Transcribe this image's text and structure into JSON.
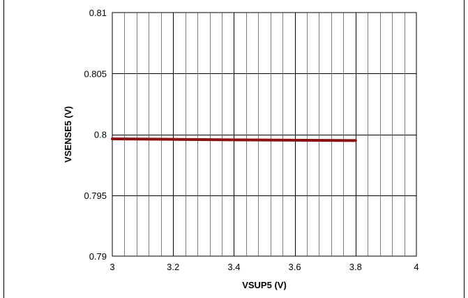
{
  "chart_data": {
    "type": "line",
    "title": "",
    "xlabel": "VSUP5 (V)",
    "ylabel": "VSENSE5 (V)",
    "xlim": [
      3,
      4
    ],
    "ylim": [
      0.79,
      0.81
    ],
    "x_ticks": [
      "3",
      "3.2",
      "3.4",
      "3.6",
      "3.8",
      "4"
    ],
    "y_ticks": [
      "0.81",
      "0.805",
      "0.8",
      "0.795",
      "0.79"
    ],
    "x_tick_values": [
      3,
      3.2,
      3.4,
      3.6,
      3.8,
      4
    ],
    "y_tick_values": [
      0.81,
      0.805,
      0.8,
      0.795,
      0.79
    ],
    "x_minor_step": 0.04,
    "grid": true,
    "legend": "none",
    "series": [
      {
        "color": "#8b0f0f",
        "x": [
          3.0,
          3.2,
          3.4,
          3.6,
          3.8
        ],
        "y": [
          0.79963,
          0.79959,
          0.79955,
          0.79952,
          0.79949
        ]
      }
    ],
    "colors": {
      "line": "#8b0f0f",
      "grid": "#7f7f7f",
      "frame": "#000000"
    }
  }
}
